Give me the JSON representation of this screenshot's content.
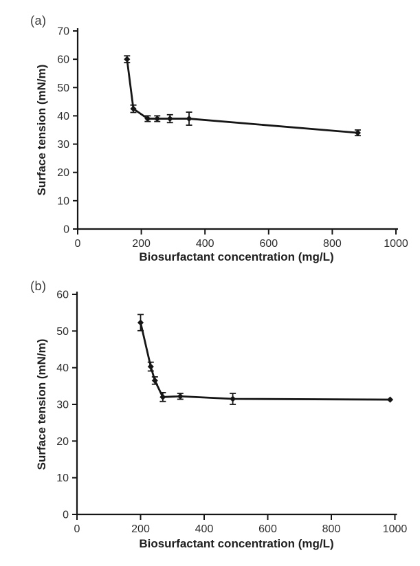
{
  "page": {
    "background": "#ffffff"
  },
  "colors": {
    "ink": "#161616",
    "tick_text": "#2e2e2e",
    "title_text": "#1f1f1f",
    "panel_label_text": "#3a3a3a"
  },
  "chart_data": [
    {
      "type": "line",
      "panel_label": "(a)",
      "title": "",
      "xlabel": "Biosurfactant concentration (mg/L)",
      "ylabel": "Surface tension (mN/m)",
      "xlim": [
        0,
        1000
      ],
      "ylim": [
        0,
        70
      ],
      "xticks": [
        0,
        200,
        400,
        600,
        800,
        1000
      ],
      "yticks": [
        0,
        10,
        20,
        30,
        40,
        50,
        60,
        70
      ],
      "grid": false,
      "legend": "none",
      "marker": "diamond",
      "error_bars": "vertical",
      "series": [
        {
          "name": "Surface tension",
          "x": [
            155,
            175,
            220,
            250,
            290,
            350,
            880
          ],
          "y": [
            60,
            42.5,
            39,
            39,
            39,
            39,
            34
          ],
          "yerr": [
            1.2,
            1.3,
            1.0,
            1.0,
            1.4,
            2.3,
            1.0
          ]
        }
      ]
    },
    {
      "type": "line",
      "panel_label": "(b)",
      "title": "",
      "xlabel": "Biosurfactant concentration (mg/L)",
      "ylabel": "Surface tension (mN/m)",
      "xlim": [
        0,
        1000
      ],
      "ylim": [
        0,
        60
      ],
      "xticks": [
        0,
        200,
        400,
        600,
        800,
        1000
      ],
      "yticks": [
        0,
        10,
        20,
        30,
        40,
        50,
        60
      ],
      "grid": false,
      "legend": "none",
      "marker": "diamond",
      "error_bars": "vertical",
      "series": [
        {
          "name": "Surface tension",
          "x": [
            200,
            232,
            245,
            270,
            325,
            490,
            985
          ],
          "y": [
            52.3,
            40.3,
            36.5,
            32,
            32.2,
            31.5,
            31.3
          ],
          "yerr": [
            2.2,
            1.2,
            1.0,
            1.2,
            0.8,
            1.5,
            0
          ]
        }
      ]
    }
  ]
}
